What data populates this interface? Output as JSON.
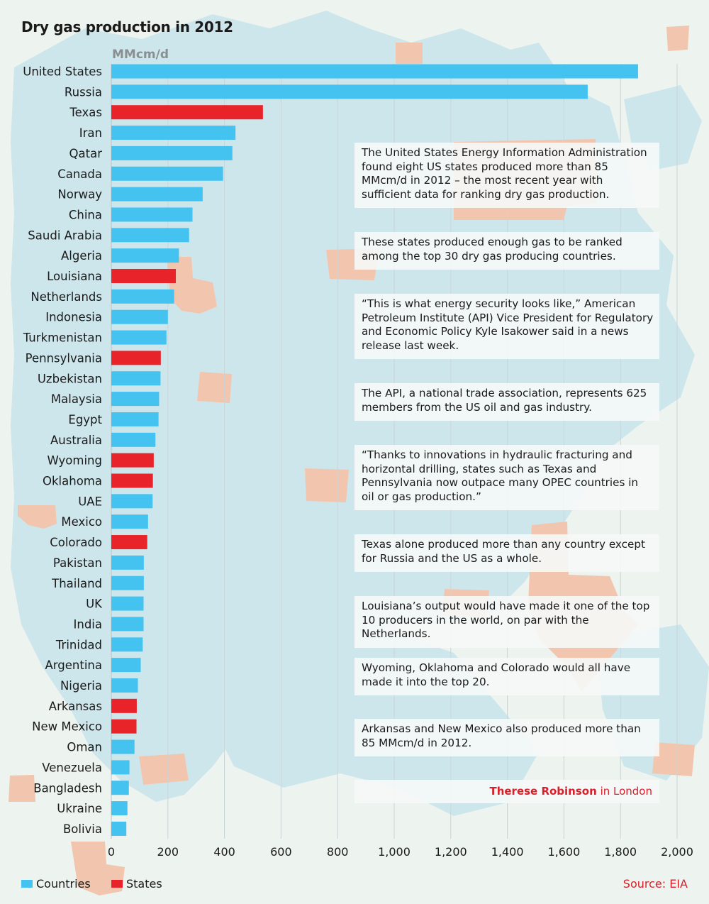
{
  "title": "Dry gas production in 2012",
  "colors": {
    "countries": "#45c3f0",
    "states": "#e8232a",
    "grid": "#c9d4d8",
    "map_land": "#cde6ec",
    "map_state": "#f2c6ae"
  },
  "notes": [
    "The United States Energy Information Administration found eight US states produced more than 85 MMcm/d in 2012 – the most recent year with sufficient data for ranking dry gas production.",
    "These states produced enough gas to be ranked among the top 30 dry gas producing countries.",
    "“This is what energy security looks like,” American Petroleum Institute (API) Vice President for Regulatory and Economic Policy Kyle Isakower said in a news release last week.",
    "The API, a national trade association, represents 625 members from the US oil and gas industry.",
    "“Thanks to innovations in hydraulic fracturing and horizontal drilling, states such as Texas and Pennsylvania now outpace many OPEC countries in oil or gas production.”",
    "Texas alone produced more than any country except for Russia and the US as a whole.",
    "Louisiana’s output would have made it one of the top 10 producers in the world, on par with the Netherlands.",
    "Wyoming, Oklahoma and Colorado would all have made it into the top 20.",
    "Arkansas and New Mexico also produced more than 85 MMcm/d in 2012."
  ],
  "byline": {
    "name": "Therese Robinson",
    "location": "in London"
  },
  "legend": {
    "countries": "Countries",
    "states": "States"
  },
  "source": "Source: EIA",
  "chart_data": {
    "type": "bar",
    "orientation": "horizontal",
    "title": "Dry gas production in 2012",
    "unit": "MMcm/d",
    "xlim": [
      0,
      2000
    ],
    "ticks": [
      0,
      200,
      400,
      600,
      800,
      1000,
      1200,
      1400,
      1600,
      1800,
      2000
    ],
    "tick_labels": [
      "0",
      "200",
      "400",
      "600",
      "800",
      "1,000",
      "1,200",
      "1,400",
      "1,600",
      "1,800",
      "2,000"
    ],
    "grid": true,
    "legend": "bottom-left",
    "categories": [
      "United States",
      "Russia",
      "Texas",
      "Iran",
      "Qatar",
      "Canada",
      "Norway",
      "China",
      "Saudi Arabia",
      "Algeria",
      "Louisiana",
      "Netherlands",
      "Indonesia",
      "Turkmenistan",
      "Pennsylvania",
      "Uzbekistan",
      "Malaysia",
      "Egypt",
      "Australia",
      "Wyoming",
      "Oklahoma",
      "UAE",
      "Mexico",
      "Colorado",
      "Pakistan",
      "Thailand",
      "UK",
      "India",
      "Trinidad",
      "Argentina",
      "Nigeria",
      "Arkansas",
      "New Mexico",
      "Oman",
      "Venezuela",
      "Bangladesh",
      "Ukraine",
      "Bolivia"
    ],
    "values": [
      1862,
      1684,
      536,
      439,
      428,
      395,
      323,
      287,
      275,
      239,
      228,
      222,
      200,
      195,
      175,
      174,
      169,
      167,
      156,
      150,
      147,
      146,
      130,
      127,
      115,
      115,
      114,
      114,
      111,
      104,
      94,
      90,
      89,
      82,
      64,
      62,
      57,
      53
    ],
    "groups": [
      "Countries",
      "Countries",
      "States",
      "Countries",
      "Countries",
      "Countries",
      "Countries",
      "Countries",
      "Countries",
      "Countries",
      "States",
      "Countries",
      "Countries",
      "Countries",
      "States",
      "Countries",
      "Countries",
      "Countries",
      "Countries",
      "States",
      "States",
      "Countries",
      "Countries",
      "States",
      "Countries",
      "Countries",
      "Countries",
      "Countries",
      "Countries",
      "Countries",
      "Countries",
      "States",
      "States",
      "Countries",
      "Countries",
      "Countries",
      "Countries",
      "Countries"
    ]
  }
}
